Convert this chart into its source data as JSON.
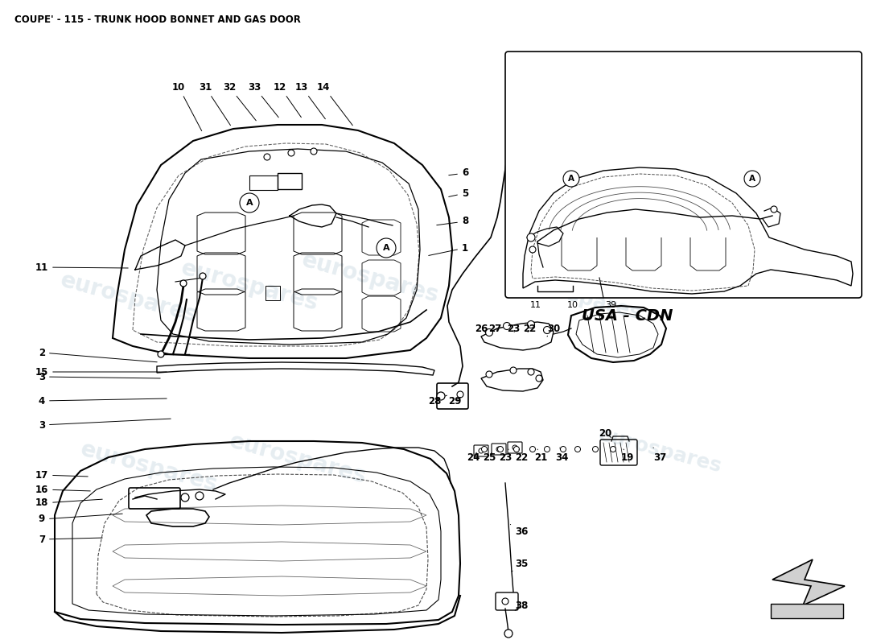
{
  "title": "COUPE' - 115 - TRUNK HOOD BONNET AND GAS DOOR",
  "title_fontsize": 8.5,
  "background_color": "#ffffff",
  "line_color": "#000000",
  "watermark_text": "eurospares",
  "watermark_color": "#b8ccd8",
  "watermark_alpha": 0.35,
  "usa_cdn_label": "USA - CDN",
  "fig_w": 11.0,
  "fig_h": 8.0
}
